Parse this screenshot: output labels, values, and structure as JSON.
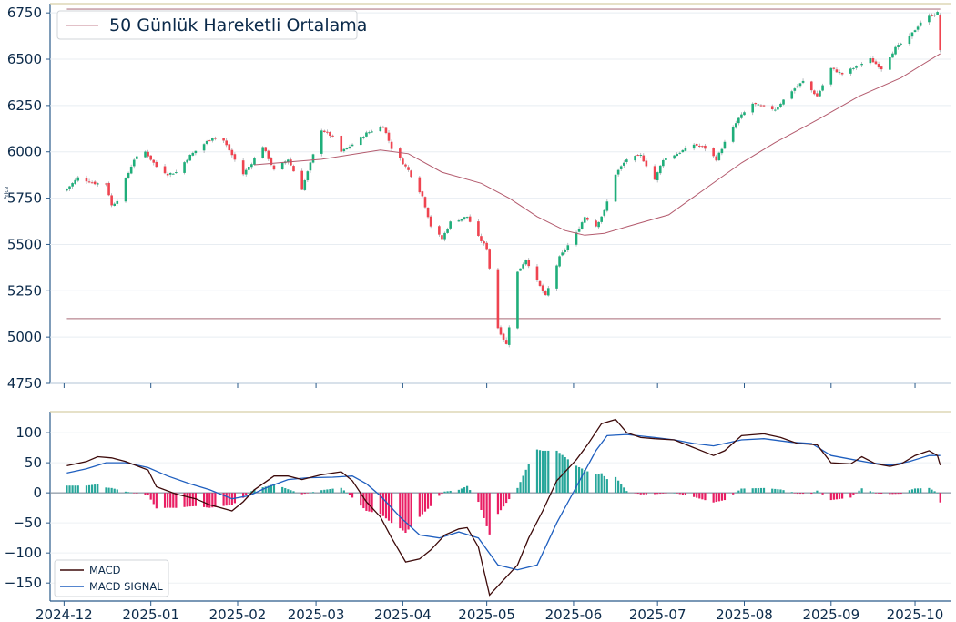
{
  "chart_data": [
    {
      "type": "candlestick",
      "ylabel": "Price",
      "ylim": [
        4750,
        6800
      ],
      "yticks": [
        4750,
        5000,
        5250,
        5500,
        5750,
        6000,
        6250,
        6500,
        6750
      ],
      "ytick_labels": [
        "4750",
        "5000",
        "5250",
        "5500",
        "5750",
        "6000",
        "6250",
        "6500",
        "6750"
      ],
      "x_range": [
        "2024-11-26",
        "2025-10-14"
      ],
      "legend": {
        "label": "50 Günlük Hareketli Ortalama",
        "position": "top-left"
      },
      "horizontal_lines": [
        6770,
        5100
      ],
      "colors": {
        "up": "#1fae7a",
        "down": "#ef4450",
        "ma": "#b35a6d",
        "hline": "#c9a3ab",
        "axis": "#2a5a8a",
        "grid": "#e8edf2"
      },
      "close_anchors": [
        [
          "2024-12-02",
          5800
        ],
        [
          "2024-12-06",
          5860
        ],
        [
          "2024-12-12",
          5830
        ],
        [
          "2024-12-16",
          5830
        ],
        [
          "2024-12-18",
          5710
        ],
        [
          "2024-12-20",
          5740
        ],
        [
          "2024-12-26",
          5960
        ],
        [
          "2024-12-30",
          6000
        ],
        [
          "2025-01-03",
          5920
        ],
        [
          "2025-01-07",
          5880
        ],
        [
          "2025-01-10",
          5890
        ],
        [
          "2025-01-15",
          5980
        ],
        [
          "2025-01-23",
          6080
        ],
        [
          "2025-01-27",
          6060
        ],
        [
          "2025-02-03",
          5880
        ],
        [
          "2025-02-06",
          5940
        ],
        [
          "2025-02-10",
          6030
        ],
        [
          "2025-02-14",
          5900
        ],
        [
          "2025-02-19",
          5960
        ],
        [
          "2025-02-24",
          5800
        ],
        [
          "2025-03-03",
          6120
        ],
        [
          "2025-03-07",
          6080
        ],
        [
          "2025-03-10",
          6000
        ],
        [
          "2025-03-14",
          6040
        ],
        [
          "2025-03-19",
          6100
        ],
        [
          "2025-03-25",
          6140
        ],
        [
          "2025-03-28",
          6020
        ],
        [
          "2025-04-03",
          5900
        ],
        [
          "2025-04-08",
          5760
        ],
        [
          "2025-04-11",
          5600
        ],
        [
          "2025-04-15",
          5530
        ],
        [
          "2025-04-18",
          5620
        ],
        [
          "2025-04-24",
          5650
        ],
        [
          "2025-04-28",
          5540
        ],
        [
          "2025-05-01",
          5480
        ],
        [
          "2025-05-05",
          5050
        ],
        [
          "2025-05-08",
          4960
        ],
        [
          "2025-05-12",
          5350
        ],
        [
          "2025-05-15",
          5420
        ],
        [
          "2025-05-19",
          5300
        ],
        [
          "2025-05-22",
          5220
        ],
        [
          "2025-05-27",
          5430
        ],
        [
          "2025-06-02",
          5560
        ],
        [
          "2025-06-05",
          5650
        ],
        [
          "2025-06-09",
          5600
        ],
        [
          "2025-06-12",
          5680
        ],
        [
          "2025-06-16",
          5880
        ],
        [
          "2025-06-20",
          5960
        ],
        [
          "2025-06-25",
          5980
        ],
        [
          "2025-06-30",
          5850
        ],
        [
          "2025-07-03",
          5960
        ],
        [
          "2025-07-08",
          5990
        ],
        [
          "2025-07-14",
          6040
        ],
        [
          "2025-07-18",
          6020
        ],
        [
          "2025-07-22",
          5960
        ],
        [
          "2025-07-25",
          6050
        ],
        [
          "2025-07-30",
          6180
        ],
        [
          "2025-08-04",
          6260
        ],
        [
          "2025-08-08",
          6240
        ],
        [
          "2025-08-12",
          6230
        ],
        [
          "2025-08-18",
          6330
        ],
        [
          "2025-08-22",
          6380
        ],
        [
          "2025-08-27",
          6300
        ],
        [
          "2025-09-01",
          6450
        ],
        [
          "2025-09-05",
          6420
        ],
        [
          "2025-09-10",
          6460
        ],
        [
          "2025-09-15",
          6500
        ],
        [
          "2025-09-19",
          6450
        ],
        [
          "2025-09-24",
          6560
        ],
        [
          "2025-09-29",
          6620
        ],
        [
          "2025-10-03",
          6700
        ],
        [
          "2025-10-07",
          6740
        ],
        [
          "2025-10-09",
          6750
        ],
        [
          "2025-10-10",
          6550
        ]
      ],
      "ma_anchors": [
        [
          "2025-02-07",
          5930
        ],
        [
          "2025-03-03",
          5960
        ],
        [
          "2025-03-24",
          6010
        ],
        [
          "2025-04-03",
          5990
        ],
        [
          "2025-04-15",
          5890
        ],
        [
          "2025-04-29",
          5830
        ],
        [
          "2025-05-09",
          5750
        ],
        [
          "2025-05-19",
          5650
        ],
        [
          "2025-05-29",
          5575
        ],
        [
          "2025-06-05",
          5550
        ],
        [
          "2025-06-12",
          5560
        ],
        [
          "2025-06-21",
          5600
        ],
        [
          "2025-07-05",
          5660
        ],
        [
          "2025-07-18",
          5800
        ],
        [
          "2025-07-31",
          5940
        ],
        [
          "2025-08-12",
          6050
        ],
        [
          "2025-08-28",
          6180
        ],
        [
          "2025-09-11",
          6300
        ],
        [
          "2025-09-26",
          6400
        ],
        [
          "2025-10-10",
          6530
        ]
      ]
    },
    {
      "type": "line",
      "ylim": [
        -180,
        135
      ],
      "yticks": [
        -150,
        -100,
        -50,
        0,
        50,
        100
      ],
      "ytick_labels": [
        "−150",
        "−100",
        "−50",
        "0",
        "50",
        "100"
      ],
      "x_range": [
        "2024-11-26",
        "2025-10-14"
      ],
      "xticks": [
        "2024-12-01",
        "2025-01-01",
        "2025-02-01",
        "2025-03-01",
        "2025-04-01",
        "2025-05-01",
        "2025-06-01",
        "2025-07-01",
        "2025-08-01",
        "2025-09-01",
        "2025-10-01"
      ],
      "xtick_labels": [
        "2024-12",
        "2025-01",
        "2025-02",
        "2025-03",
        "2025-04",
        "2025-05",
        "2025-06",
        "2025-07",
        "2025-08",
        "2025-09",
        "2025-10"
      ],
      "legend": {
        "position": "bottom-left"
      },
      "colors": {
        "macd": "#3d0a0a",
        "signal": "#1f5fbf",
        "hist_pos": "#26a69a",
        "hist_neg": "#e91e63"
      },
      "series": [
        {
          "name": "MACD",
          "points": [
            [
              "2024-12-02",
              45
            ],
            [
              "2024-12-09",
              52
            ],
            [
              "2024-12-13",
              60
            ],
            [
              "2024-12-18",
              58
            ],
            [
              "2024-12-23",
              52
            ],
            [
              "2024-12-31",
              38
            ],
            [
              "2025-01-03",
              10
            ],
            [
              "2025-01-10",
              -2
            ],
            [
              "2025-01-17",
              -10
            ],
            [
              "2025-01-22",
              -20
            ],
            [
              "2025-01-30",
              -30
            ],
            [
              "2025-02-03",
              -15
            ],
            [
              "2025-02-07",
              5
            ],
            [
              "2025-02-14",
              28
            ],
            [
              "2025-02-19",
              28
            ],
            [
              "2025-02-24",
              22
            ],
            [
              "2025-03-03",
              30
            ],
            [
              "2025-03-10",
              35
            ],
            [
              "2025-03-14",
              20
            ],
            [
              "2025-03-19",
              -15
            ],
            [
              "2025-03-24",
              -40
            ],
            [
              "2025-03-28",
              -75
            ],
            [
              "2025-04-02",
              -115
            ],
            [
              "2025-04-07",
              -110
            ],
            [
              "2025-04-11",
              -95
            ],
            [
              "2025-04-16",
              -70
            ],
            [
              "2025-04-21",
              -60
            ],
            [
              "2025-04-24",
              -58
            ],
            [
              "2025-04-28",
              -90
            ],
            [
              "2025-05-02",
              -170
            ],
            [
              "2025-05-06",
              -150
            ],
            [
              "2025-05-12",
              -120
            ],
            [
              "2025-05-16",
              -75
            ],
            [
              "2025-05-21",
              -30
            ],
            [
              "2025-05-26",
              20
            ],
            [
              "2025-06-02",
              55
            ],
            [
              "2025-06-06",
              80
            ],
            [
              "2025-06-11",
              115
            ],
            [
              "2025-06-16",
              122
            ],
            [
              "2025-06-20",
              100
            ],
            [
              "2025-06-25",
              92
            ],
            [
              "2025-06-30",
              90
            ],
            [
              "2025-07-07",
              88
            ],
            [
              "2025-07-14",
              75
            ],
            [
              "2025-07-21",
              62
            ],
            [
              "2025-07-25",
              70
            ],
            [
              "2025-07-31",
              95
            ],
            [
              "2025-08-08",
              98
            ],
            [
              "2025-08-14",
              92
            ],
            [
              "2025-08-20",
              82
            ],
            [
              "2025-08-27",
              80
            ],
            [
              "2025-09-01",
              50
            ],
            [
              "2025-09-08",
              48
            ],
            [
              "2025-09-12",
              60
            ],
            [
              "2025-09-17",
              48
            ],
            [
              "2025-09-22",
              44
            ],
            [
              "2025-09-26",
              48
            ],
            [
              "2025-10-01",
              62
            ],
            [
              "2025-10-06",
              70
            ],
            [
              "2025-10-09",
              62
            ],
            [
              "2025-10-10",
              46
            ]
          ]
        },
        {
          "name": "MACD SIGNAL",
          "points": [
            [
              "2024-12-02",
              33
            ],
            [
              "2024-12-09",
              40
            ],
            [
              "2024-12-16",
              50
            ],
            [
              "2024-12-23",
              50
            ],
            [
              "2024-12-31",
              42
            ],
            [
              "2025-01-07",
              28
            ],
            [
              "2025-01-15",
              15
            ],
            [
              "2025-01-22",
              5
            ],
            [
              "2025-01-30",
              -10
            ],
            [
              "2025-02-05",
              -5
            ],
            [
              "2025-02-12",
              10
            ],
            [
              "2025-02-19",
              22
            ],
            [
              "2025-02-26",
              25
            ],
            [
              "2025-03-07",
              26
            ],
            [
              "2025-03-14",
              28
            ],
            [
              "2025-03-19",
              15
            ],
            [
              "2025-03-24",
              -5
            ],
            [
              "2025-03-31",
              -40
            ],
            [
              "2025-04-07",
              -70
            ],
            [
              "2025-04-14",
              -75
            ],
            [
              "2025-04-21",
              -65
            ],
            [
              "2025-04-28",
              -75
            ],
            [
              "2025-05-05",
              -120
            ],
            [
              "2025-05-12",
              -128
            ],
            [
              "2025-05-19",
              -120
            ],
            [
              "2025-05-26",
              -50
            ],
            [
              "2025-06-02",
              10
            ],
            [
              "2025-06-09",
              70
            ],
            [
              "2025-06-13",
              95
            ],
            [
              "2025-06-20",
              97
            ],
            [
              "2025-06-30",
              92
            ],
            [
              "2025-07-07",
              88
            ],
            [
              "2025-07-14",
              82
            ],
            [
              "2025-07-21",
              78
            ],
            [
              "2025-07-31",
              88
            ],
            [
              "2025-08-08",
              90
            ],
            [
              "2025-08-18",
              84
            ],
            [
              "2025-08-25",
              82
            ],
            [
              "2025-09-01",
              62
            ],
            [
              "2025-09-08",
              56
            ],
            [
              "2025-09-15",
              50
            ],
            [
              "2025-09-22",
              46
            ],
            [
              "2025-09-29",
              52
            ],
            [
              "2025-10-06",
              62
            ],
            [
              "2025-10-10",
              62
            ]
          ]
        }
      ]
    }
  ]
}
